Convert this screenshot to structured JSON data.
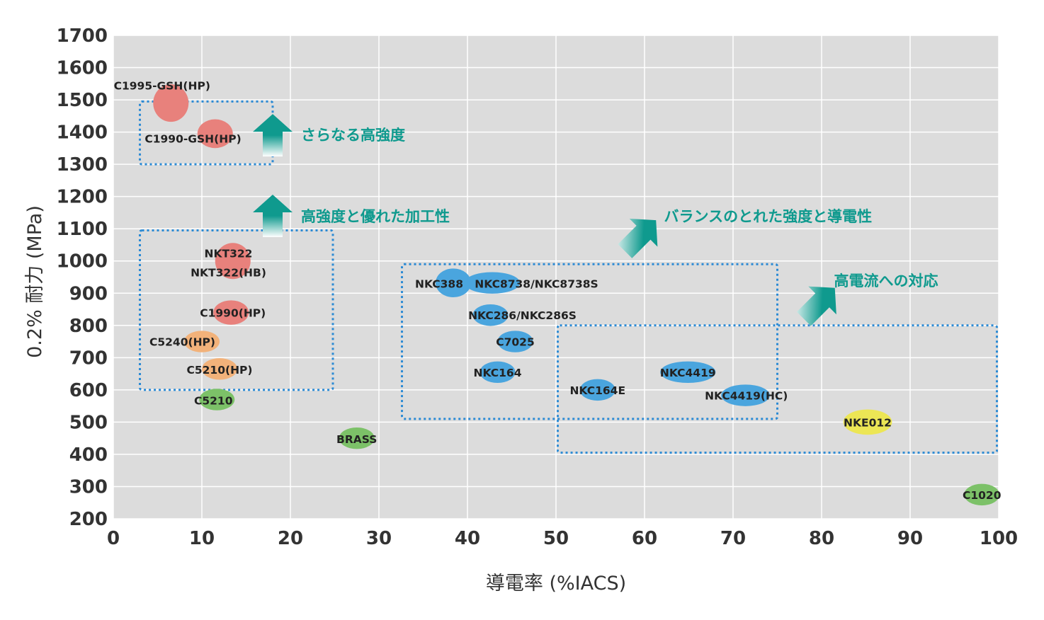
{
  "chart_data": {
    "type": "scatter",
    "title": "",
    "xlabel": "導電率 (%IACS)",
    "ylabel": "0.2% 耐力 (MPa)",
    "xlim": [
      0,
      100
    ],
    "ylim": [
      200,
      1700
    ],
    "xticks": [
      "0",
      "10",
      "20",
      "30",
      "40",
      "50",
      "60",
      "70",
      "80",
      "90",
      "100"
    ],
    "yticks": [
      "200",
      "300",
      "400",
      "500",
      "600",
      "700",
      "800",
      "900",
      "1000",
      "1100",
      "1200",
      "1300",
      "1400",
      "1500",
      "1600",
      "1700"
    ],
    "grid": true,
    "colors": {
      "red": "#e8817c",
      "orange": "#f2b27a",
      "green": "#7cc168",
      "blue": "#4aa5de",
      "yellow": "#ece655",
      "box": "#2b8ad4",
      "annotation": "#0f9a8e",
      "plot_bg": "#dcdcdc"
    },
    "points": [
      {
        "label": "C1995-GSH(HP)",
        "x": 6.5,
        "y": 1490,
        "color": "red",
        "rx": 1.6,
        "ry": 100,
        "lx": 5.5,
        "ly": 1545
      },
      {
        "label": "C1990-GSH(HP)",
        "x": 11.5,
        "y": 1395,
        "color": "red",
        "rx": 1.6,
        "ry": 70,
        "lx": 9,
        "ly": 1380
      },
      {
        "label": "NKT322",
        "x": 13.5,
        "y": 1000,
        "color": "red",
        "rx": 1.6,
        "ry": 95,
        "lx": 13,
        "ly": 1025
      },
      {
        "label": "NKT322(HB)",
        "x": 13.5,
        "y": 970,
        "color": "red",
        "rx": 0,
        "ry": 0,
        "lx": 13,
        "ly": 965
      },
      {
        "label": "C1990(HP)",
        "x": 13.3,
        "y": 840,
        "color": "red",
        "rx": 1.6,
        "ry": 55,
        "lx": 13.5,
        "ly": 840
      },
      {
        "label": "C5240(HP)",
        "x": 10,
        "y": 750,
        "color": "orange",
        "rx": 1.6,
        "ry": 45,
        "lx": 7.8,
        "ly": 750
      },
      {
        "label": "C5210(HP)",
        "x": 12,
        "y": 665,
        "color": "orange",
        "rx": 1.6,
        "ry": 45,
        "lx": 12,
        "ly": 663
      },
      {
        "label": "C5210",
        "x": 11.7,
        "y": 570,
        "color": "green",
        "rx": 1.6,
        "ry": 45,
        "lx": 11.3,
        "ly": 568
      },
      {
        "label": "BRASS",
        "x": 27.5,
        "y": 450,
        "color": "green",
        "rx": 1.6,
        "ry": 45,
        "lx": 27.5,
        "ly": 448
      },
      {
        "label": "NKC388",
        "x": 38.4,
        "y": 932,
        "color": "blue",
        "rx": 1.6,
        "ry": 70,
        "lx": 36.8,
        "ly": 930
      },
      {
        "label": "NKC8738/NKC8738S",
        "x": 42.8,
        "y": 932,
        "color": "blue",
        "rx": 2.5,
        "ry": 45,
        "lx": 47.8,
        "ly": 930
      },
      {
        "label": "NKC286/NKC286S",
        "x": 42.6,
        "y": 832,
        "color": "blue",
        "rx": 1.6,
        "ry": 45,
        "lx": 46.2,
        "ly": 832
      },
      {
        "label": "C7025",
        "x": 45.4,
        "y": 750,
        "color": "blue",
        "rx": 1.6,
        "ry": 45,
        "lx": 45.4,
        "ly": 750
      },
      {
        "label": "NKC164",
        "x": 43.4,
        "y": 655,
        "color": "blue",
        "rx": 1.6,
        "ry": 45,
        "lx": 43.4,
        "ly": 655
      },
      {
        "label": "NKC164E",
        "x": 54.7,
        "y": 600,
        "color": "blue",
        "rx": 1.6,
        "ry": 45,
        "lx": 54.7,
        "ly": 600
      },
      {
        "label": "NKC4419",
        "x": 64.9,
        "y": 655,
        "color": "blue",
        "rx": 2.5,
        "ry": 45,
        "lx": 64.9,
        "ly": 655
      },
      {
        "label": "NKC4419(HC)",
        "x": 71.4,
        "y": 583,
        "color": "blue",
        "rx": 2.2,
        "ry": 45,
        "lx": 71.5,
        "ly": 583
      },
      {
        "label": "NKE012",
        "x": 85.2,
        "y": 500,
        "color": "yellow",
        "rx": 2.2,
        "ry": 58,
        "lx": 85.2,
        "ly": 500
      },
      {
        "label": "C1020",
        "x": 98.1,
        "y": 275,
        "color": "green",
        "rx": 1.6,
        "ry": 45,
        "lx": 98.1,
        "ly": 275
      }
    ],
    "boxes": [
      {
        "x1": 3,
        "x2": 18,
        "y1": 1300,
        "y2": 1495
      },
      {
        "x1": 3,
        "x2": 24.8,
        "y1": 600,
        "y2": 1095
      },
      {
        "x1": 32.6,
        "x2": 75,
        "y1": 510,
        "y2": 990
      },
      {
        "x1": 50.2,
        "x2": 99.8,
        "y1": 405,
        "y2": 800
      }
    ],
    "annotations": [
      {
        "text": "さらなる高強度",
        "x": 21.2,
        "y": 1392,
        "arrow": "up",
        "ax": 18,
        "ay": 1390
      },
      {
        "text": "高強度と優れた加工性",
        "x": 21.2,
        "y": 1140,
        "arrow": "up",
        "ax": 18,
        "ay": 1140
      },
      {
        "text": "バランスのとれた強度と導電性",
        "x": 62.2,
        "y": 1140,
        "arrow": "diag",
        "ax": 59.6,
        "ay": 1080
      },
      {
        "text": "高電流への対応",
        "x": 81.4,
        "y": 940,
        "arrow": "diag",
        "ax": 79.8,
        "ay": 870
      }
    ]
  }
}
